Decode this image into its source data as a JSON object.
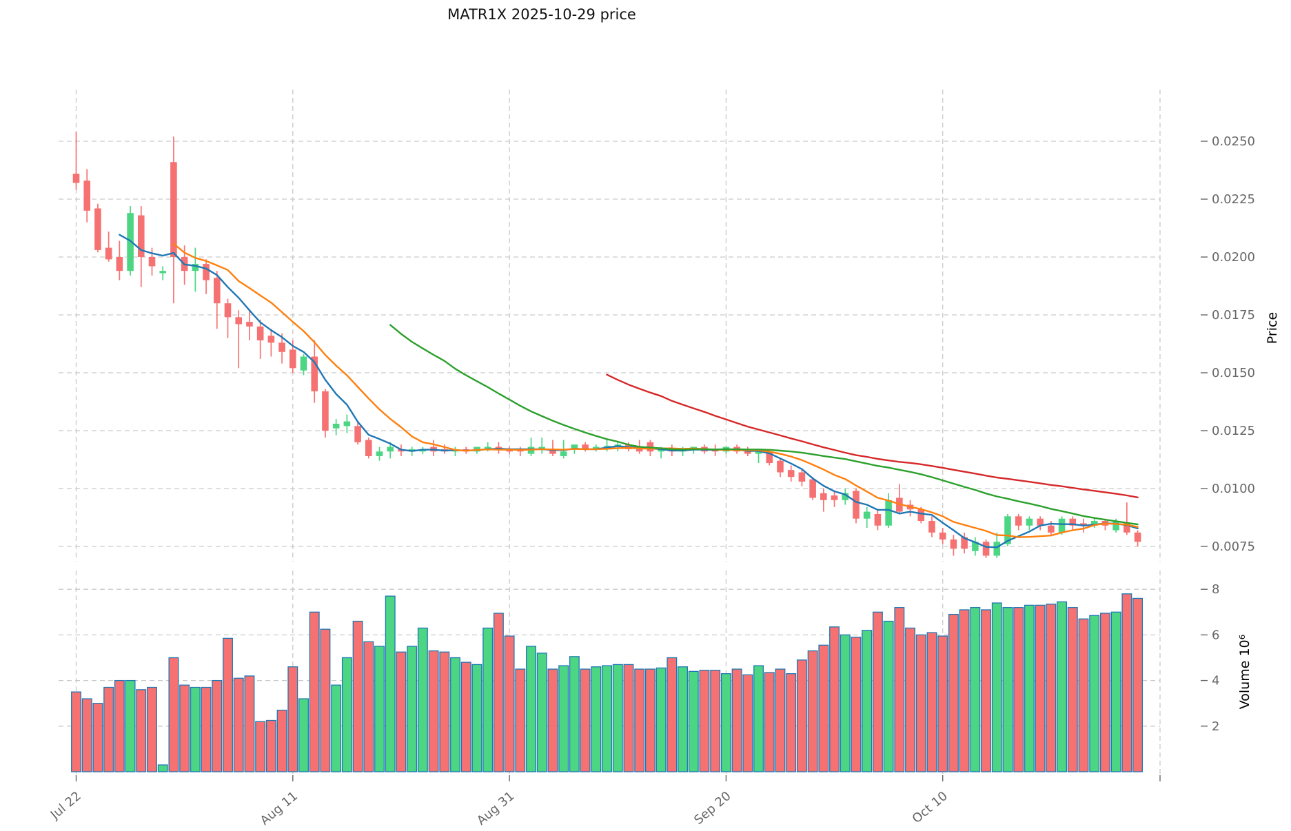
{
  "title": "MATR1X  2025-10-29  price",
  "chart_data": {
    "type": "candlestick",
    "title": "MATR1X  2025-10-29  price",
    "x_axis": {
      "tick_labels": [
        {
          "index": 0,
          "label": "Jul 22"
        },
        {
          "index": 20,
          "label": "Aug 11"
        },
        {
          "index": 40,
          "label": "Aug 31"
        },
        {
          "index": 60,
          "label": "Sep 20"
        },
        {
          "index": 80,
          "label": "Oct 10"
        }
      ]
    },
    "price_axis": {
      "label": "Price",
      "ticks": [
        0.0075,
        0.01,
        0.0125,
        0.015,
        0.0175,
        0.02,
        0.0225,
        0.025
      ],
      "range": [
        0.0069,
        0.0278
      ]
    },
    "volume_axis": {
      "label": "Volume",
      "unit": "10⁶",
      "ticks": [
        2,
        4,
        6,
        8
      ],
      "range": [
        0,
        8.8
      ]
    },
    "legend_position": "none",
    "grid": "dashed",
    "moving_averages": [
      {
        "window": 5,
        "color": "#1f77b4"
      },
      {
        "window": 10,
        "color": "#ff7f0e"
      },
      {
        "window": 30,
        "color": "#2ca02c"
      },
      {
        "window": 50,
        "color": "#d62728"
      }
    ],
    "colors": {
      "up": "#4cd684",
      "down": "#f67272",
      "volume_edge": "#1f77b4",
      "grid": "#c9c9c9",
      "tick_text": "#666666",
      "label_text": "#000000",
      "title_text": "#111111"
    },
    "candles_format": [
      "open",
      "high",
      "low",
      "close",
      "volume_millions"
    ],
    "candles": [
      [
        0.0236,
        0.0254,
        0.0229,
        0.0232,
        3.5
      ],
      [
        0.0233,
        0.0238,
        0.0215,
        0.022,
        3.2
      ],
      [
        0.0221,
        0.0223,
        0.0202,
        0.0203,
        3.0
      ],
      [
        0.0204,
        0.0211,
        0.0198,
        0.0199,
        3.7
      ],
      [
        0.02,
        0.0207,
        0.019,
        0.0194,
        4.0
      ],
      [
        0.0194,
        0.0222,
        0.0192,
        0.0219,
        4.0
      ],
      [
        0.0218,
        0.0222,
        0.0187,
        0.02,
        3.6
      ],
      [
        0.02,
        0.0204,
        0.0192,
        0.0196,
        3.7
      ],
      [
        0.0193,
        0.0196,
        0.019,
        0.0194,
        0.3
      ],
      [
        0.0241,
        0.0252,
        0.018,
        0.02,
        5.0
      ],
      [
        0.02,
        0.0205,
        0.0188,
        0.0194,
        3.8
      ],
      [
        0.0194,
        0.0204,
        0.0185,
        0.0197,
        3.7
      ],
      [
        0.0197,
        0.0199,
        0.0184,
        0.019,
        3.7
      ],
      [
        0.0191,
        0.0194,
        0.0169,
        0.018,
        4.0
      ],
      [
        0.018,
        0.0182,
        0.0165,
        0.0174,
        5.85
      ],
      [
        0.0174,
        0.0177,
        0.0152,
        0.0171,
        4.1
      ],
      [
        0.0172,
        0.0177,
        0.0164,
        0.017,
        4.2
      ],
      [
        0.017,
        0.0173,
        0.0156,
        0.0164,
        2.2
      ],
      [
        0.0166,
        0.0169,
        0.0157,
        0.0163,
        2.25
      ],
      [
        0.0163,
        0.0167,
        0.0154,
        0.0159,
        2.7
      ],
      [
        0.016,
        0.0164,
        0.015,
        0.0152,
        4.6
      ],
      [
        0.0151,
        0.0158,
        0.0149,
        0.0157,
        3.2
      ],
      [
        0.0157,
        0.0164,
        0.0137,
        0.0142,
        7.0
      ],
      [
        0.0142,
        0.0143,
        0.0122,
        0.0125,
        6.25
      ],
      [
        0.0126,
        0.013,
        0.0123,
        0.0128,
        3.8
      ],
      [
        0.0127,
        0.0132,
        0.0124,
        0.0129,
        5.0
      ],
      [
        0.0127,
        0.0129,
        0.0119,
        0.012,
        6.6
      ],
      [
        0.0121,
        0.0122,
        0.0113,
        0.0114,
        5.7
      ],
      [
        0.0114,
        0.0118,
        0.0112,
        0.0116,
        5.5
      ],
      [
        0.0116,
        0.012,
        0.0113,
        0.0118,
        7.7
      ],
      [
        0.0117,
        0.0119,
        0.0114,
        0.0116,
        5.25
      ],
      [
        0.0116,
        0.0118,
        0.0114,
        0.0117,
        5.5
      ],
      [
        0.0116,
        0.0118,
        0.0115,
        0.0117,
        6.3
      ],
      [
        0.0118,
        0.0121,
        0.0114,
        0.0116,
        5.3
      ],
      [
        0.0117,
        0.0119,
        0.0115,
        0.0116,
        5.25
      ],
      [
        0.0116,
        0.0118,
        0.0114,
        0.0117,
        5.0
      ],
      [
        0.0117,
        0.0118,
        0.0115,
        0.0116,
        4.8
      ],
      [
        0.0116,
        0.0118,
        0.0115,
        0.0118,
        4.7
      ],
      [
        0.0117,
        0.012,
        0.0116,
        0.0118,
        6.3
      ],
      [
        0.0118,
        0.012,
        0.0115,
        0.0117,
        6.95
      ],
      [
        0.0117,
        0.0118,
        0.0115,
        0.0116,
        5.95
      ],
      [
        0.0117,
        0.0118,
        0.0114,
        0.0116,
        4.5
      ],
      [
        0.0115,
        0.0122,
        0.0114,
        0.0118,
        5.5
      ],
      [
        0.0117,
        0.0122,
        0.0115,
        0.0118,
        5.2
      ],
      [
        0.0117,
        0.0121,
        0.0114,
        0.0115,
        4.5
      ],
      [
        0.0114,
        0.0121,
        0.0113,
        0.0116,
        4.65
      ],
      [
        0.0117,
        0.0119,
        0.0115,
        0.0119,
        5.05
      ],
      [
        0.0119,
        0.012,
        0.0116,
        0.0117,
        4.5
      ],
      [
        0.0117,
        0.0119,
        0.0116,
        0.0118,
        4.6
      ],
      [
        0.0118,
        0.0121,
        0.0116,
        0.01185,
        4.65
      ],
      [
        0.0118,
        0.012,
        0.0116,
        0.0119,
        4.7
      ],
      [
        0.0119,
        0.012,
        0.0116,
        0.0117,
        4.7
      ],
      [
        0.0117,
        0.0121,
        0.0115,
        0.0116,
        4.5
      ],
      [
        0.012,
        0.0121,
        0.0114,
        0.0116,
        4.5
      ],
      [
        0.0116,
        0.0118,
        0.0113,
        0.0117,
        4.55
      ],
      [
        0.0117,
        0.0119,
        0.0114,
        0.0116,
        5.0
      ],
      [
        0.0116,
        0.0118,
        0.0114,
        0.0117,
        4.6
      ],
      [
        0.0117,
        0.0118,
        0.0115,
        0.0118,
        4.4
      ],
      [
        0.0118,
        0.0119,
        0.0115,
        0.0116,
        4.45
      ],
      [
        0.0117,
        0.0119,
        0.0114,
        0.0116,
        4.45
      ],
      [
        0.0116,
        0.0118,
        0.0115,
        0.0118,
        4.3
      ],
      [
        0.0118,
        0.0119,
        0.0115,
        0.0116,
        4.5
      ],
      [
        0.0117,
        0.0118,
        0.0114,
        0.0115,
        4.25
      ],
      [
        0.0115,
        0.0117,
        0.0111,
        0.0116,
        4.65
      ],
      [
        0.0116,
        0.0117,
        0.011,
        0.0111,
        4.35
      ],
      [
        0.0112,
        0.0113,
        0.0105,
        0.0107,
        4.5
      ],
      [
        0.0108,
        0.011,
        0.0103,
        0.0105,
        4.3
      ],
      [
        0.0107,
        0.0108,
        0.0101,
        0.0103,
        4.9
      ],
      [
        0.0104,
        0.0105,
        0.0095,
        0.0096,
        5.3
      ],
      [
        0.0098,
        0.01,
        0.009,
        0.0095,
        5.55
      ],
      [
        0.0097,
        0.0099,
        0.0092,
        0.0095,
        6.35
      ],
      [
        0.0095,
        0.01,
        0.0093,
        0.0098,
        6.0
      ],
      [
        0.0099,
        0.01,
        0.0085,
        0.0087,
        5.9
      ],
      [
        0.0087,
        0.0092,
        0.0083,
        0.009,
        6.2
      ],
      [
        0.0089,
        0.0091,
        0.0082,
        0.0084,
        7.0
      ],
      [
        0.0084,
        0.0098,
        0.0083,
        0.0095,
        6.6
      ],
      [
        0.0096,
        0.0102,
        0.0089,
        0.009,
        7.2
      ],
      [
        0.0093,
        0.0095,
        0.0088,
        0.0091,
        6.3
      ],
      [
        0.0091,
        0.0092,
        0.0085,
        0.0086,
        6.0
      ],
      [
        0.0086,
        0.0088,
        0.0079,
        0.0081,
        6.1
      ],
      [
        0.0081,
        0.0083,
        0.0076,
        0.0078,
        5.95
      ],
      [
        0.0078,
        0.008,
        0.0071,
        0.0074,
        6.9
      ],
      [
        0.0079,
        0.0081,
        0.0072,
        0.0074,
        7.1
      ],
      [
        0.0073,
        0.0079,
        0.0071,
        0.0077,
        7.2
      ],
      [
        0.0077,
        0.0078,
        0.007,
        0.0071,
        7.1
      ],
      [
        0.0071,
        0.0081,
        0.007,
        0.0077,
        7.4
      ],
      [
        0.0076,
        0.0089,
        0.0075,
        0.0088,
        7.2
      ],
      [
        0.0088,
        0.0089,
        0.0082,
        0.0084,
        7.2
      ],
      [
        0.0084,
        0.0088,
        0.0082,
        0.0087,
        7.3
      ],
      [
        0.0087,
        0.0088,
        0.0082,
        0.0084,
        7.3
      ],
      [
        0.0084,
        0.0086,
        0.008,
        0.0081,
        7.35
      ],
      [
        0.0081,
        0.0088,
        0.008,
        0.0087,
        7.45
      ],
      [
        0.0087,
        0.0088,
        0.0082,
        0.0084,
        7.2
      ],
      [
        0.0085,
        0.0087,
        0.0081,
        0.0084,
        6.7
      ],
      [
        0.0084,
        0.0087,
        0.0083,
        0.0086,
        6.85
      ],
      [
        0.0086,
        0.0087,
        0.0082,
        0.0084,
        6.95
      ],
      [
        0.0082,
        0.0087,
        0.0081,
        0.0086,
        7.0
      ],
      [
        0.0085,
        0.0094,
        0.008,
        0.0081,
        7.8
      ],
      [
        0.0081,
        0.0082,
        0.0075,
        0.0077,
        7.6
      ]
    ]
  }
}
